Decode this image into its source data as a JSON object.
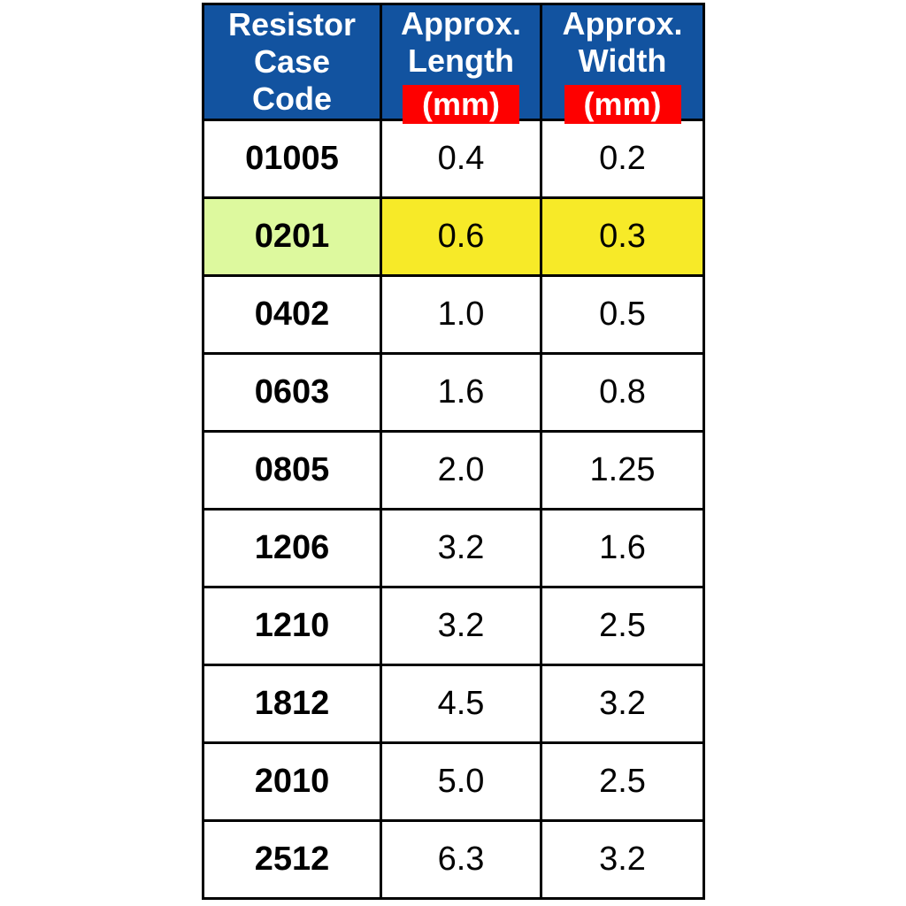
{
  "chart_data": {
    "type": "table",
    "title": "",
    "columns": [
      "Resistor Case Code",
      "Approx. Length (mm)",
      "Approx. Width (mm)"
    ],
    "rows": [
      [
        "01005",
        0.4,
        0.2
      ],
      [
        "0201",
        0.6,
        0.3
      ],
      [
        "0402",
        1.0,
        0.5
      ],
      [
        "0603",
        1.6,
        0.8
      ],
      [
        "0805",
        2.0,
        1.25
      ],
      [
        "1206",
        3.2,
        1.6
      ],
      [
        "1210",
        3.2,
        2.5
      ],
      [
        "1812",
        4.5,
        3.2
      ],
      [
        "2010",
        5.0,
        2.5
      ],
      [
        "2512",
        6.3,
        3.2
      ]
    ],
    "highlighted_row": "0201",
    "layout": "single table, header row blue with red unit badges, row 0201 highlighted"
  },
  "table": {
    "header": {
      "col1": {
        "line1": "Resistor",
        "line2": "Case",
        "line3": "Code"
      },
      "col2": {
        "line1": "Approx.",
        "line2": "Length",
        "unit": "(mm)"
      },
      "col3": {
        "line1": "Approx.",
        "line2": "Width",
        "unit": "(mm)"
      }
    },
    "rows": [
      {
        "code": "01005",
        "length": "0.4",
        "width": "0.2",
        "highlight": false
      },
      {
        "code": "0201",
        "length": "0.6",
        "width": "0.3",
        "highlight": true
      },
      {
        "code": "0402",
        "length": "1.0",
        "width": "0.5",
        "highlight": false
      },
      {
        "code": "0603",
        "length": "1.6",
        "width": "0.8",
        "highlight": false
      },
      {
        "code": "0805",
        "length": "2.0",
        "width": "1.25",
        "highlight": false
      },
      {
        "code": "1206",
        "length": "3.2",
        "width": "1.6",
        "highlight": false
      },
      {
        "code": "1210",
        "length": "3.2",
        "width": "2.5",
        "highlight": false
      },
      {
        "code": "1812",
        "length": "4.5",
        "width": "3.2",
        "highlight": false
      },
      {
        "code": "2010",
        "length": "5.0",
        "width": "2.5",
        "highlight": false
      },
      {
        "code": "2512",
        "length": "6.3",
        "width": "3.2",
        "highlight": false
      }
    ],
    "colors": {
      "header_bg": "#1253A0",
      "header_text": "#FFFFFF",
      "unit_bg": "#FE0000",
      "highlight_code_bg": "#DDF99E",
      "highlight_value_bg": "#F7EA28",
      "border": "#000000",
      "row_bg": "#FFFFFF",
      "text": "#000000"
    }
  }
}
